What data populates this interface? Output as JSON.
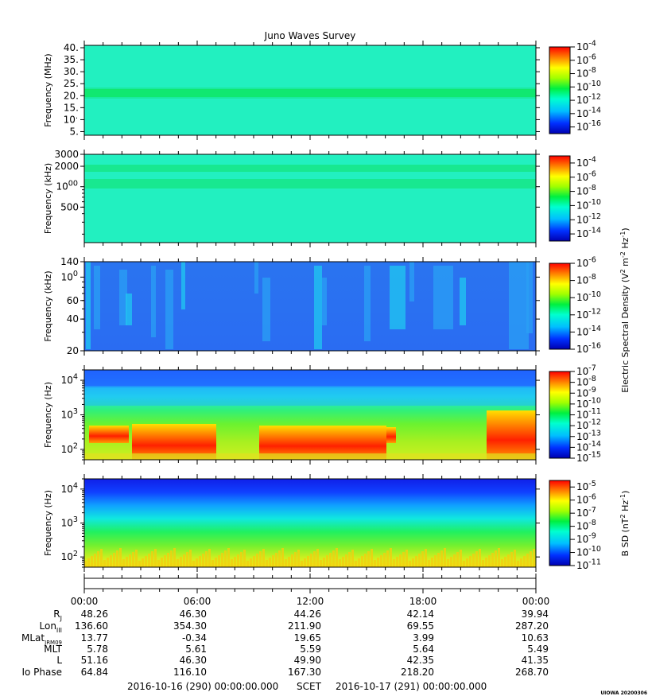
{
  "chart_data": {
    "type": "heatmap",
    "title": "Juno Waves Survey",
    "panels": [
      {
        "ylabel": "Frequency (MHz)",
        "yscale": "linear",
        "ylim": [
          3.5,
          41
        ],
        "yticks": [
          "40.",
          "35.",
          "30.",
          "25.",
          "20.",
          "15.",
          "10.",
          "5."
        ],
        "ytick_values": [
          40,
          35,
          30,
          25,
          20,
          15,
          10,
          5
        ],
        "colorbar_ticks": [
          "10-4",
          "10-6",
          "10-8",
          "10-10",
          "10-12",
          "10-14",
          "10-16"
        ],
        "colorbar_range": [
          -17,
          -4
        ],
        "features": "uniform background ~1e-13 with a bright band near 21 MHz"
      },
      {
        "ylabel": "Frequency (kHz)",
        "yscale": "log",
        "ylim": [
          150,
          3000
        ],
        "yticks": [
          "3000",
          "2000",
          "1000",
          "500"
        ],
        "ytick_values": [
          3000,
          2000,
          1000,
          500
        ],
        "colorbar_ticks": [
          "10-4",
          "10-6",
          "10-8",
          "10-10",
          "10-12",
          "10-14"
        ],
        "colorbar_range": [
          -15,
          -3
        ],
        "features": "uniform background ~1e-12 with bands near 1800 and 1100 kHz"
      },
      {
        "ylabel": "Frequency (kHz)",
        "yscale": "log",
        "ylim": [
          20,
          140
        ],
        "yticks": [
          "140",
          "100",
          "60",
          "40",
          "20"
        ],
        "ytick_values": [
          140,
          100,
          60,
          40,
          20
        ],
        "colorbar_ticks": [
          "10-6",
          "10-8",
          "10-10",
          "10-12",
          "10-14",
          "10-16"
        ],
        "colorbar_range": [
          -16,
          -6
        ],
        "features": "background ~1e-15 with sporadic vertical emission streaks"
      },
      {
        "ylabel": "Frequency (Hz)",
        "yscale": "log",
        "ylim": [
          50,
          20000
        ],
        "yticks": [
          "104",
          "103",
          "102"
        ],
        "ytick_values": [
          10000,
          1000,
          100
        ],
        "colorbar_ticks": [
          "10-7",
          "10-8",
          "10-9",
          "10-10",
          "10-11",
          "10-12",
          "10-13",
          "10-14",
          "10-15"
        ],
        "colorbar_range": [
          -15,
          -7
        ],
        "features": "intense low-frequency emission below ~500 Hz in several time intervals"
      },
      {
        "ylabel": "Frequency (Hz)",
        "yscale": "log",
        "ylim": [
          50,
          20000
        ],
        "yticks": [
          "104",
          "103",
          "102"
        ],
        "ytick_values": [
          10000,
          1000,
          100
        ],
        "colorbar_ticks": [
          "10-5",
          "10-6",
          "10-7",
          "10-8",
          "10-9",
          "10-10",
          "10-11"
        ],
        "colorbar_range": [
          -11,
          -4.5
        ],
        "features": "smooth gradient from blue at high frequency to yellow at low frequency"
      }
    ],
    "colorbar_labels": [
      "Electric Spectral Density (V2 m-2 Hz-1)",
      "B SD (nT2 Hz-1)"
    ],
    "x_axis": {
      "label": "SCET",
      "start": "2016-10-16 (290) 00:00:00.000",
      "end": "2016-10-17 (291) 00:00:00.000",
      "ticks": [
        "00:00",
        "06:00",
        "12:00",
        "18:00",
        "00:00"
      ]
    },
    "ephemeris": [
      {
        "label": "RJ",
        "values": [
          "48.26",
          "46.30",
          "44.26",
          "42.14",
          "39.94"
        ]
      },
      {
        "label": "LonIII",
        "values": [
          "136.60",
          "354.30",
          "211.90",
          "69.55",
          "287.20"
        ]
      },
      {
        "label": "MLatJRM09",
        "values": [
          "13.77",
          "-0.34",
          "19.65",
          "3.99",
          "10.63"
        ]
      },
      {
        "label": "MLT",
        "values": [
          "5.78",
          "5.61",
          "5.59",
          "5.64",
          "5.49"
        ]
      },
      {
        "label": "L",
        "values": [
          "51.16",
          "46.30",
          "49.90",
          "42.35",
          "41.35"
        ]
      },
      {
        "label": "Io Phase",
        "values": [
          "64.84",
          "116.10",
          "167.30",
          "218.20",
          "268.70"
        ]
      }
    ],
    "credit": "UIOWA 20200306"
  }
}
